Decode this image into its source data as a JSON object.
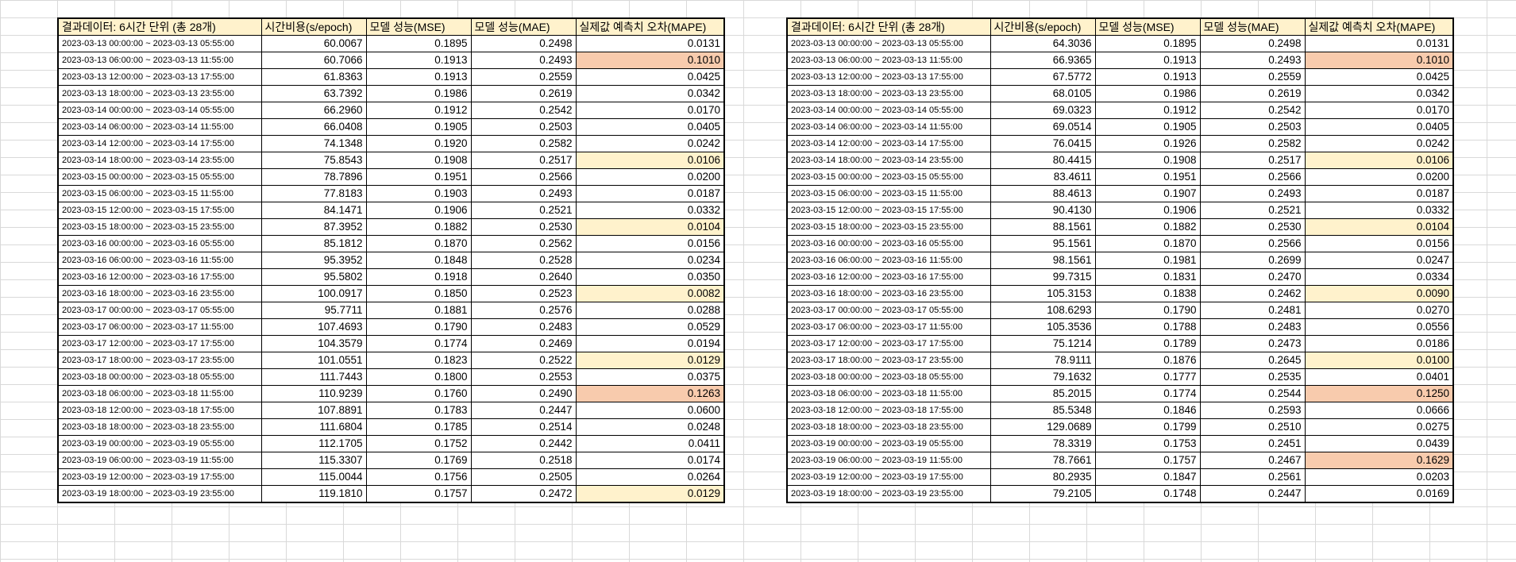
{
  "colors": {
    "highlight_orange": "#f8cbad",
    "highlight_yellow": "#fff2cc",
    "grid": "#d9d9d9"
  },
  "tables": [
    {
      "headers": [
        "결과데이터: 6시간 단위 (총 28개)",
        "시간비용(s/epoch)",
        "모델 성능(MSE)",
        "모델 성능(MAE)",
        "실제값 예측치 오차(MAPE)"
      ],
      "rows": [
        {
          "period": "2023-03-13 00:00:00 ~ 2023-03-13 05:55:00",
          "time": "60.0067",
          "mse": "0.1895",
          "mae": "0.2498",
          "mape": "0.0131",
          "hl": ""
        },
        {
          "period": "2023-03-13 06:00:00 ~ 2023-03-13 11:55:00",
          "time": "60.7066",
          "mse": "0.1913",
          "mae": "0.2493",
          "mape": "0.1010",
          "hl": "orange"
        },
        {
          "period": "2023-03-13 12:00:00 ~ 2023-03-13 17:55:00",
          "time": "61.8363",
          "mse": "0.1913",
          "mae": "0.2559",
          "mape": "0.0425",
          "hl": ""
        },
        {
          "period": "2023-03-13 18:00:00 ~ 2023-03-13 23:55:00",
          "time": "63.7392",
          "mse": "0.1986",
          "mae": "0.2619",
          "mape": "0.0342",
          "hl": ""
        },
        {
          "period": "2023-03-14 00:00:00 ~ 2023-03-14 05:55:00",
          "time": "66.2960",
          "mse": "0.1912",
          "mae": "0.2542",
          "mape": "0.0170",
          "hl": ""
        },
        {
          "period": "2023-03-14 06:00:00 ~ 2023-03-14 11:55:00",
          "time": "66.0408",
          "mse": "0.1905",
          "mae": "0.2503",
          "mape": "0.0405",
          "hl": ""
        },
        {
          "period": "2023-03-14 12:00:00 ~ 2023-03-14 17:55:00",
          "time": "74.1348",
          "mse": "0.1920",
          "mae": "0.2582",
          "mape": "0.0242",
          "hl": ""
        },
        {
          "period": "2023-03-14 18:00:00 ~ 2023-03-14 23:55:00",
          "time": "75.8543",
          "mse": "0.1908",
          "mae": "0.2517",
          "mape": "0.0106",
          "hl": "yellow"
        },
        {
          "period": "2023-03-15 00:00:00 ~ 2023-03-15 05:55:00",
          "time": "78.7896",
          "mse": "0.1951",
          "mae": "0.2566",
          "mape": "0.0200",
          "hl": ""
        },
        {
          "period": "2023-03-15 06:00:00 ~ 2023-03-15 11:55:00",
          "time": "77.8183",
          "mse": "0.1903",
          "mae": "0.2493",
          "mape": "0.0187",
          "hl": ""
        },
        {
          "period": "2023-03-15 12:00:00 ~ 2023-03-15 17:55:00",
          "time": "84.1471",
          "mse": "0.1906",
          "mae": "0.2521",
          "mape": "0.0332",
          "hl": ""
        },
        {
          "period": "2023-03-15 18:00:00 ~ 2023-03-15 23:55:00",
          "time": "87.3952",
          "mse": "0.1882",
          "mae": "0.2530",
          "mape": "0.0104",
          "hl": "yellow"
        },
        {
          "period": "2023-03-16 00:00:00 ~ 2023-03-16 05:55:00",
          "time": "85.1812",
          "mse": "0.1870",
          "mae": "0.2562",
          "mape": "0.0156",
          "hl": ""
        },
        {
          "period": "2023-03-16 06:00:00 ~ 2023-03-16 11:55:00",
          "time": "95.3952",
          "mse": "0.1848",
          "mae": "0.2528",
          "mape": "0.0234",
          "hl": ""
        },
        {
          "period": "2023-03-16 12:00:00 ~ 2023-03-16 17:55:00",
          "time": "95.5802",
          "mse": "0.1918",
          "mae": "0.2640",
          "mape": "0.0350",
          "hl": ""
        },
        {
          "period": "2023-03-16 18:00:00 ~ 2023-03-16 23:55:00",
          "time": "100.0917",
          "mse": "0.1850",
          "mae": "0.2523",
          "mape": "0.0082",
          "hl": "yellow"
        },
        {
          "period": "2023-03-17 00:00:00 ~ 2023-03-17 05:55:00",
          "time": "95.7711",
          "mse": "0.1881",
          "mae": "0.2576",
          "mape": "0.0288",
          "hl": ""
        },
        {
          "period": "2023-03-17 06:00:00 ~ 2023-03-17 11:55:00",
          "time": "107.4693",
          "mse": "0.1790",
          "mae": "0.2483",
          "mape": "0.0529",
          "hl": ""
        },
        {
          "period": "2023-03-17 12:00:00 ~ 2023-03-17 17:55:00",
          "time": "104.3579",
          "mse": "0.1774",
          "mae": "0.2469",
          "mape": "0.0194",
          "hl": ""
        },
        {
          "period": "2023-03-17 18:00:00 ~ 2023-03-17 23:55:00",
          "time": "101.0551",
          "mse": "0.1823",
          "mae": "0.2522",
          "mape": "0.0129",
          "hl": "yellow"
        },
        {
          "period": "2023-03-18 00:00:00 ~ 2023-03-18 05:55:00",
          "time": "111.7443",
          "mse": "0.1800",
          "mae": "0.2553",
          "mape": "0.0375",
          "hl": ""
        },
        {
          "period": "2023-03-18 06:00:00 ~ 2023-03-18 11:55:00",
          "time": "110.9239",
          "mse": "0.1760",
          "mae": "0.2490",
          "mape": "0.1263",
          "hl": "orange"
        },
        {
          "period": "2023-03-18 12:00:00 ~ 2023-03-18 17:55:00",
          "time": "107.8891",
          "mse": "0.1783",
          "mae": "0.2447",
          "mape": "0.0600",
          "hl": ""
        },
        {
          "period": "2023-03-18 18:00:00 ~ 2023-03-18 23:55:00",
          "time": "111.6804",
          "mse": "0.1785",
          "mae": "0.2514",
          "mape": "0.0248",
          "hl": ""
        },
        {
          "period": "2023-03-19 00:00:00 ~ 2023-03-19 05:55:00",
          "time": "112.1705",
          "mse": "0.1752",
          "mae": "0.2442",
          "mape": "0.0411",
          "hl": ""
        },
        {
          "period": "2023-03-19 06:00:00 ~ 2023-03-19 11:55:00",
          "time": "115.3307",
          "mse": "0.1769",
          "mae": "0.2518",
          "mape": "0.0174",
          "hl": ""
        },
        {
          "period": "2023-03-19 12:00:00 ~ 2023-03-19 17:55:00",
          "time": "115.0044",
          "mse": "0.1756",
          "mae": "0.2505",
          "mape": "0.0264",
          "hl": ""
        },
        {
          "period": "2023-03-19 18:00:00 ~ 2023-03-19 23:55:00",
          "time": "119.1810",
          "mse": "0.1757",
          "mae": "0.2472",
          "mape": "0.0129",
          "hl": "yellow"
        }
      ]
    },
    {
      "headers": [
        "결과데이터: 6시간 단위 (총 28개)",
        "시간비용(s/epoch)",
        "모델 성능(MSE)",
        "모델 성능(MAE)",
        "실제값 예측치 오차(MAPE)"
      ],
      "rows": [
        {
          "period": "2023-03-13 00:00:00 ~ 2023-03-13 05:55:00",
          "time": "64.3036",
          "mse": "0.1895",
          "mae": "0.2498",
          "mape": "0.0131",
          "hl": ""
        },
        {
          "period": "2023-03-13 06:00:00 ~ 2023-03-13 11:55:00",
          "time": "66.9365",
          "mse": "0.1913",
          "mae": "0.2493",
          "mape": "0.1010",
          "hl": "orange"
        },
        {
          "period": "2023-03-13 12:00:00 ~ 2023-03-13 17:55:00",
          "time": "67.5772",
          "mse": "0.1913",
          "mae": "0.2559",
          "mape": "0.0425",
          "hl": ""
        },
        {
          "period": "2023-03-13 18:00:00 ~ 2023-03-13 23:55:00",
          "time": "68.0105",
          "mse": "0.1986",
          "mae": "0.2619",
          "mape": "0.0342",
          "hl": ""
        },
        {
          "period": "2023-03-14 00:00:00 ~ 2023-03-14 05:55:00",
          "time": "69.0323",
          "mse": "0.1912",
          "mae": "0.2542",
          "mape": "0.0170",
          "hl": ""
        },
        {
          "period": "2023-03-14 06:00:00 ~ 2023-03-14 11:55:00",
          "time": "69.0514",
          "mse": "0.1905",
          "mae": "0.2503",
          "mape": "0.0405",
          "hl": ""
        },
        {
          "period": "2023-03-14 12:00:00 ~ 2023-03-14 17:55:00",
          "time": "76.0415",
          "mse": "0.1926",
          "mae": "0.2582",
          "mape": "0.0242",
          "hl": ""
        },
        {
          "period": "2023-03-14 18:00:00 ~ 2023-03-14 23:55:00",
          "time": "80.4415",
          "mse": "0.1908",
          "mae": "0.2517",
          "mape": "0.0106",
          "hl": "yellow"
        },
        {
          "period": "2023-03-15 00:00:00 ~ 2023-03-15 05:55:00",
          "time": "83.4611",
          "mse": "0.1951",
          "mae": "0.2566",
          "mape": "0.0200",
          "hl": ""
        },
        {
          "period": "2023-03-15 06:00:00 ~ 2023-03-15 11:55:00",
          "time": "88.4613",
          "mse": "0.1907",
          "mae": "0.2493",
          "mape": "0.0187",
          "hl": ""
        },
        {
          "period": "2023-03-15 12:00:00 ~ 2023-03-15 17:55:00",
          "time": "90.4130",
          "mse": "0.1906",
          "mae": "0.2521",
          "mape": "0.0332",
          "hl": ""
        },
        {
          "period": "2023-03-15 18:00:00 ~ 2023-03-15 23:55:00",
          "time": "88.1561",
          "mse": "0.1882",
          "mae": "0.2530",
          "mape": "0.0104",
          "hl": "yellow"
        },
        {
          "period": "2023-03-16 00:00:00 ~ 2023-03-16 05:55:00",
          "time": "95.1561",
          "mse": "0.1870",
          "mae": "0.2566",
          "mape": "0.0156",
          "hl": ""
        },
        {
          "period": "2023-03-16 06:00:00 ~ 2023-03-16 11:55:00",
          "time": "98.1561",
          "mse": "0.1981",
          "mae": "0.2699",
          "mape": "0.0247",
          "hl": ""
        },
        {
          "period": "2023-03-16 12:00:00 ~ 2023-03-16 17:55:00",
          "time": "99.7315",
          "mse": "0.1831",
          "mae": "0.2470",
          "mape": "0.0334",
          "hl": ""
        },
        {
          "period": "2023-03-16 18:00:00 ~ 2023-03-16 23:55:00",
          "time": "105.3153",
          "mse": "0.1838",
          "mae": "0.2462",
          "mape": "0.0090",
          "hl": "yellow"
        },
        {
          "period": "2023-03-17 00:00:00 ~ 2023-03-17 05:55:00",
          "time": "108.6293",
          "mse": "0.1790",
          "mae": "0.2481",
          "mape": "0.0270",
          "hl": ""
        },
        {
          "period": "2023-03-17 06:00:00 ~ 2023-03-17 11:55:00",
          "time": "105.3536",
          "mse": "0.1788",
          "mae": "0.2483",
          "mape": "0.0556",
          "hl": ""
        },
        {
          "period": "2023-03-17 12:00:00 ~ 2023-03-17 17:55:00",
          "time": "75.1214",
          "mse": "0.1789",
          "mae": "0.2473",
          "mape": "0.0186",
          "hl": ""
        },
        {
          "period": "2023-03-17 18:00:00 ~ 2023-03-17 23:55:00",
          "time": "78.9111",
          "mse": "0.1876",
          "mae": "0.2645",
          "mape": "0.0100",
          "hl": "yellow"
        },
        {
          "period": "2023-03-18 00:00:00 ~ 2023-03-18 05:55:00",
          "time": "79.1632",
          "mse": "0.1777",
          "mae": "0.2535",
          "mape": "0.0401",
          "hl": ""
        },
        {
          "period": "2023-03-18 06:00:00 ~ 2023-03-18 11:55:00",
          "time": "85.2015",
          "mse": "0.1774",
          "mae": "0.2544",
          "mape": "0.1250",
          "hl": "orange"
        },
        {
          "period": "2023-03-18 12:00:00 ~ 2023-03-18 17:55:00",
          "time": "85.5348",
          "mse": "0.1846",
          "mae": "0.2593",
          "mape": "0.0666",
          "hl": ""
        },
        {
          "period": "2023-03-18 18:00:00 ~ 2023-03-18 23:55:00",
          "time": "129.0689",
          "mse": "0.1799",
          "mae": "0.2510",
          "mape": "0.0275",
          "hl": ""
        },
        {
          "period": "2023-03-19 00:00:00 ~ 2023-03-19 05:55:00",
          "time": "78.3319",
          "mse": "0.1753",
          "mae": "0.2451",
          "mape": "0.0439",
          "hl": ""
        },
        {
          "period": "2023-03-19 06:00:00 ~ 2023-03-19 11:55:00",
          "time": "78.7661",
          "mse": "0.1757",
          "mae": "0.2467",
          "mape": "0.1629",
          "hl": "orange"
        },
        {
          "period": "2023-03-19 12:00:00 ~ 2023-03-19 17:55:00",
          "time": "80.2935",
          "mse": "0.1847",
          "mae": "0.2561",
          "mape": "0.0203",
          "hl": ""
        },
        {
          "period": "2023-03-19 18:00:00 ~ 2023-03-19 23:55:00",
          "time": "79.2105",
          "mse": "0.1748",
          "mae": "0.2447",
          "mape": "0.0169",
          "hl": ""
        }
      ]
    }
  ]
}
